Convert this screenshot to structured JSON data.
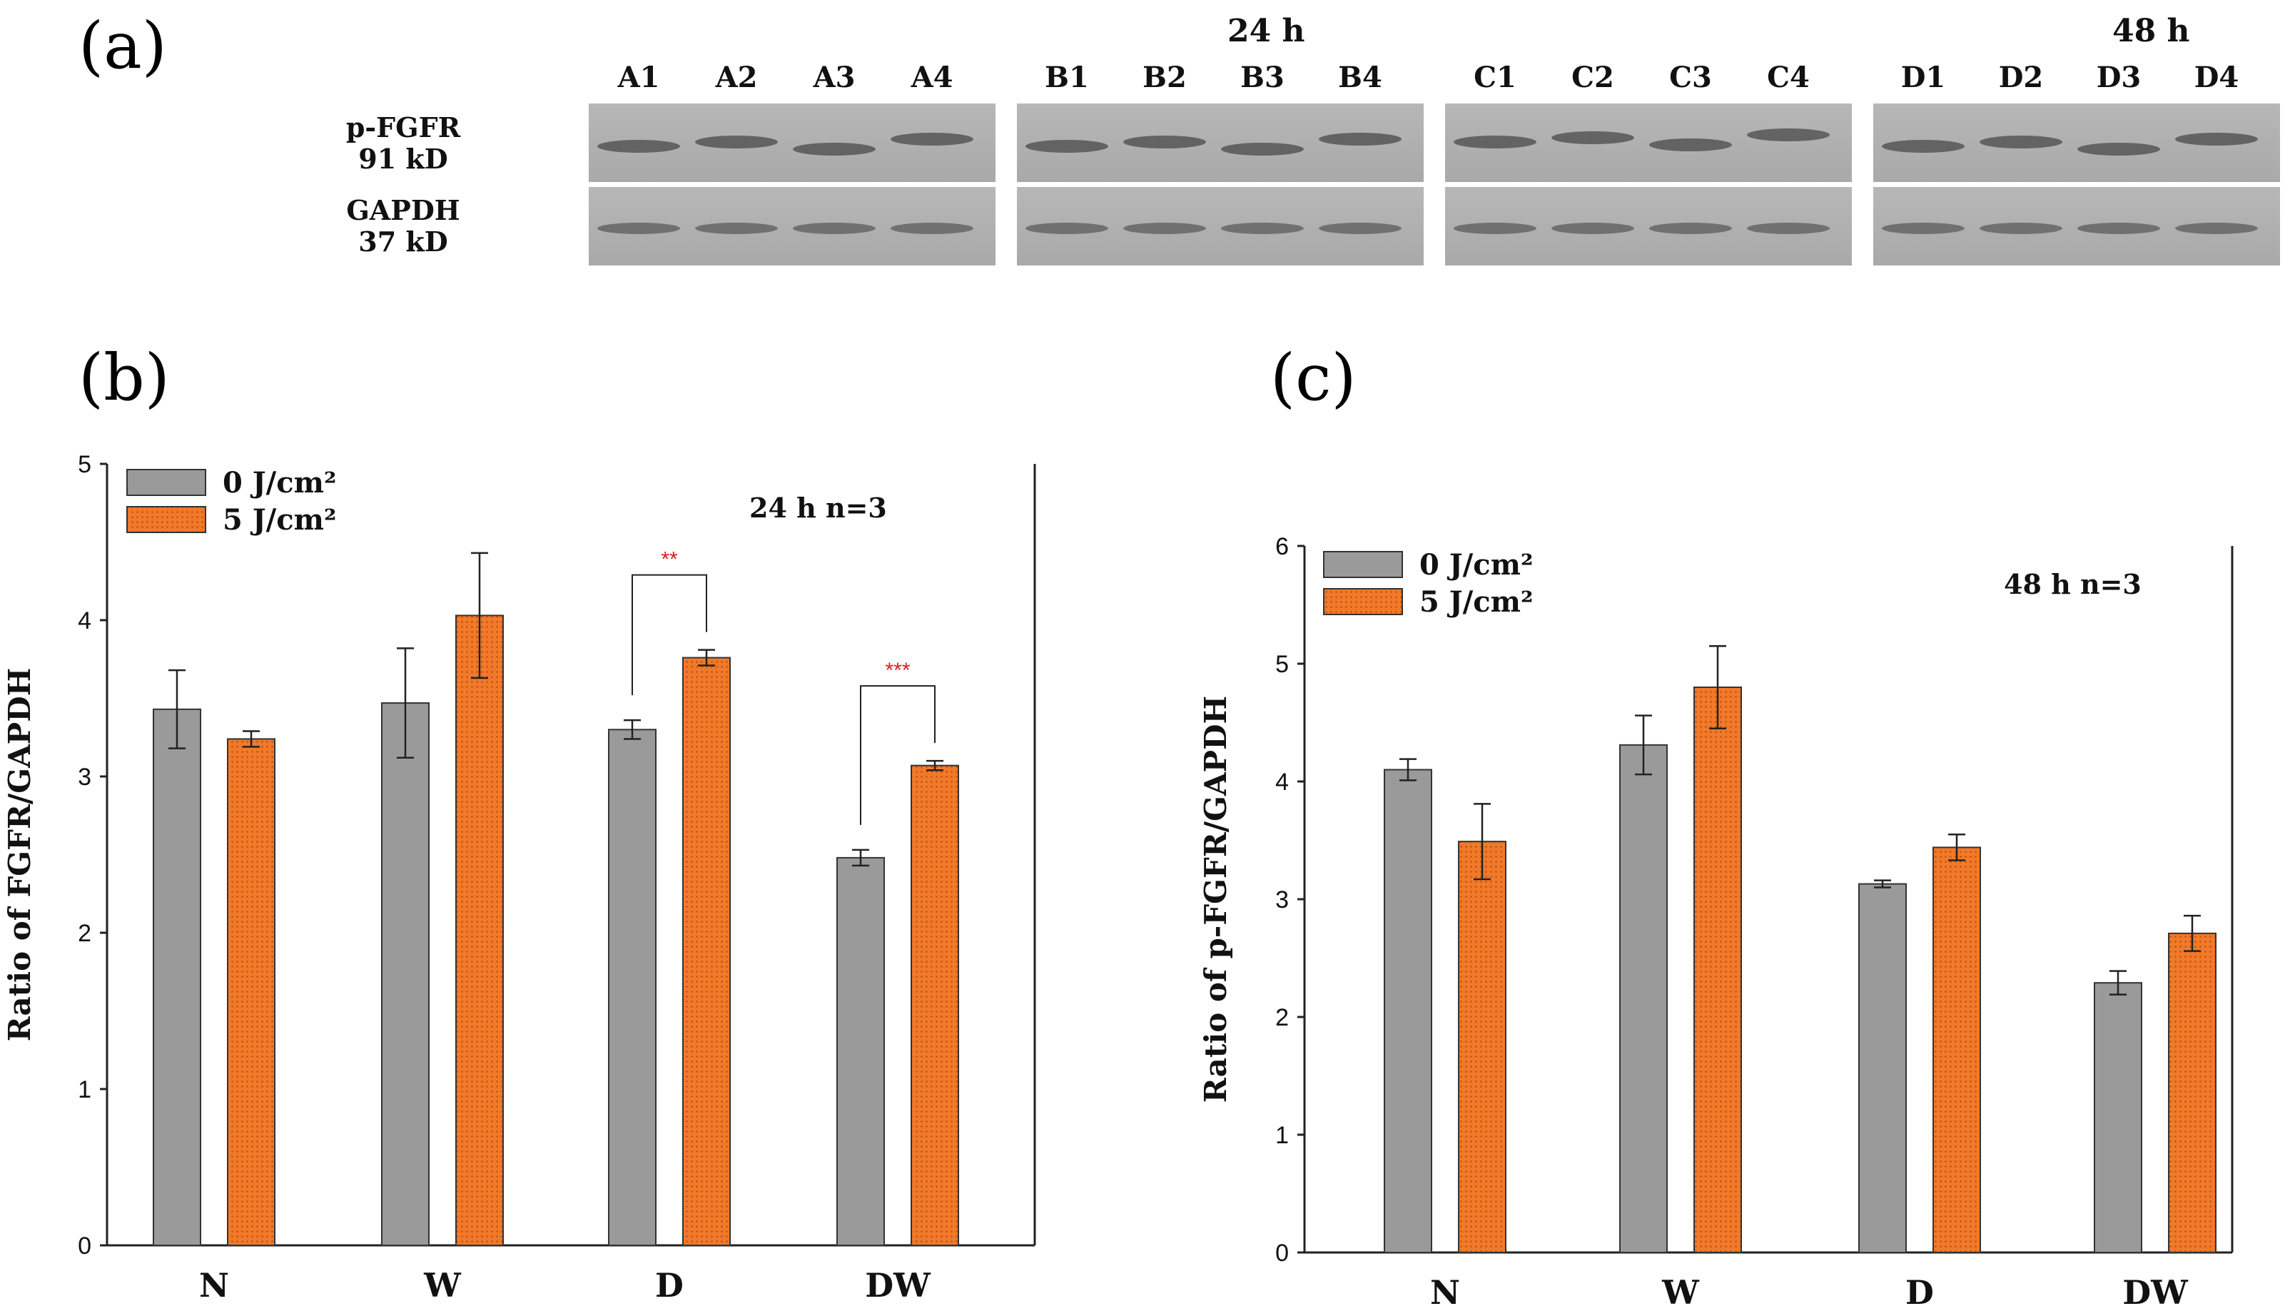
{
  "colors": {
    "control": "#9a9a9a",
    "treated": "#f07a2a",
    "treated_dots": "#c24f0c",
    "significance": "#d62020"
  },
  "panel_a": {
    "label": "(a)",
    "time_labels": [
      "24 h",
      "48 h"
    ],
    "lane_groups": [
      [
        "A1",
        "A2",
        "A3",
        "A4"
      ],
      [
        "B1",
        "B2",
        "B3",
        "B4"
      ],
      [
        "C1",
        "C2",
        "C3",
        "C4"
      ],
      [
        "D1",
        "D2",
        "D3",
        "D4"
      ]
    ],
    "band_labels": [
      {
        "name": "p-FGFR",
        "mw": "91 kD"
      },
      {
        "name": "GAPDH",
        "mw": "37 kD"
      }
    ]
  },
  "chart_data": [
    {
      "panel": "(b)",
      "type": "bar",
      "categories": [
        "N",
        "W",
        "D",
        "DW"
      ],
      "series": [
        {
          "name": "0 J/cm²",
          "values": [
            3.43,
            3.47,
            3.3,
            2.48
          ],
          "errors": [
            0.25,
            0.35,
            0.06,
            0.05
          ]
        },
        {
          "name": "5 J/cm²",
          "values": [
            3.24,
            4.03,
            3.76,
            3.07
          ],
          "errors": [
            0.05,
            0.4,
            0.05,
            0.03
          ]
        }
      ],
      "ylabel": "Ratio of FGFR/GAPDH",
      "ylim": [
        0,
        5
      ],
      "yticks": [
        0,
        1,
        2,
        3,
        4,
        5
      ],
      "annotation": "24 h    n=3",
      "significance": [
        {
          "category": "D",
          "label": "**"
        },
        {
          "category": "DW",
          "label": "***"
        }
      ]
    },
    {
      "panel": "(c)",
      "type": "bar",
      "categories": [
        "N",
        "W",
        "D",
        "DW"
      ],
      "series": [
        {
          "name": "0 J/cm²",
          "values": [
            4.1,
            4.31,
            3.13,
            2.29
          ],
          "errors": [
            0.09,
            0.25,
            0.03,
            0.1
          ]
        },
        {
          "name": "5 J/cm²",
          "values": [
            3.49,
            4.8,
            3.44,
            2.71
          ],
          "errors": [
            0.32,
            0.35,
            0.11,
            0.15
          ]
        }
      ],
      "ylabel": "Ratio of p-FGFR/GAPDH",
      "ylim": [
        0,
        6
      ],
      "yticks": [
        0,
        1,
        2,
        3,
        4,
        5,
        6
      ],
      "annotation": "48 h     n=3",
      "significance": []
    }
  ]
}
